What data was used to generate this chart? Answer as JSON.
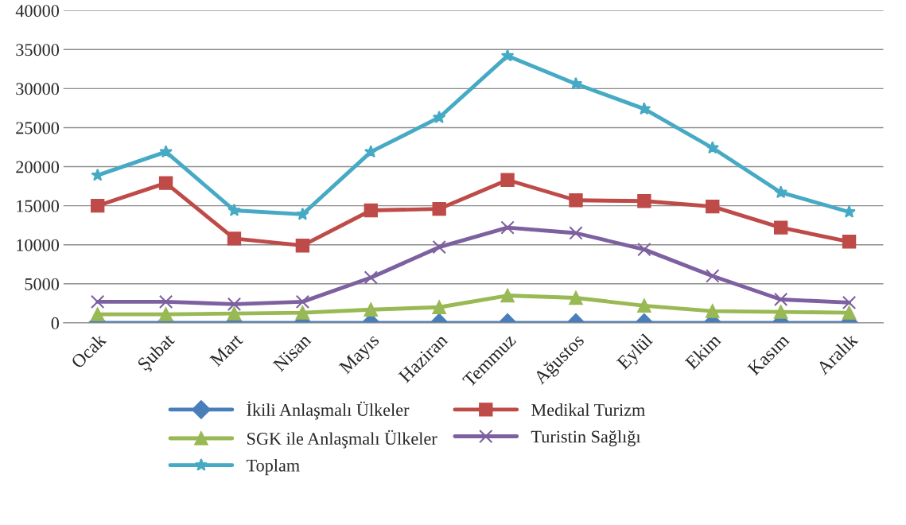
{
  "chart_data": {
    "type": "line",
    "categories": [
      "Ocak",
      "Şubat",
      "Mart",
      "Nisan",
      "Mayıs",
      "Haziran",
      "Temmuz",
      "Ağustos",
      "Eylül",
      "Ekim",
      "Kasım",
      "Aralık"
    ],
    "series": [
      {
        "name": "İkili Anlaşmalı Ülkeler",
        "color": "#4a7ebb",
        "marker": "diamond",
        "values": [
          0,
          0,
          0,
          0,
          0,
          0,
          0,
          0,
          0,
          0,
          0,
          0
        ]
      },
      {
        "name": "Medikal Turizm",
        "color": "#be4b48",
        "marker": "square",
        "values": [
          15000,
          17900,
          10800,
          9900,
          14400,
          14600,
          18300,
          15700,
          15600,
          14900,
          12200,
          10400
        ]
      },
      {
        "name": "SGK ile Anlaşmalı Ülkeler",
        "color": "#98b954",
        "marker": "triangle",
        "values": [
          1100,
          1100,
          1200,
          1300,
          1700,
          2000,
          3500,
          3200,
          2200,
          1500,
          1400,
          1300
        ]
      },
      {
        "name": "Turistin Sağlığı",
        "color": "#7d60a0",
        "marker": "cross",
        "values": [
          2700,
          2700,
          2400,
          2700,
          5800,
          9700,
          12200,
          11500,
          9400,
          6000,
          3000,
          2600
        ]
      },
      {
        "name": "Toplam",
        "color": "#46aac5",
        "marker": "star",
        "values": [
          18900,
          21900,
          14400,
          13900,
          21900,
          26300,
          34200,
          30600,
          27400,
          22400,
          16700,
          14200
        ]
      }
    ],
    "ylim": [
      0,
      40000
    ],
    "yticks": [
      0,
      5000,
      10000,
      15000,
      20000,
      25000,
      30000,
      35000,
      40000
    ],
    "grid": "y",
    "legend": "bottom",
    "line_style": "solid"
  }
}
